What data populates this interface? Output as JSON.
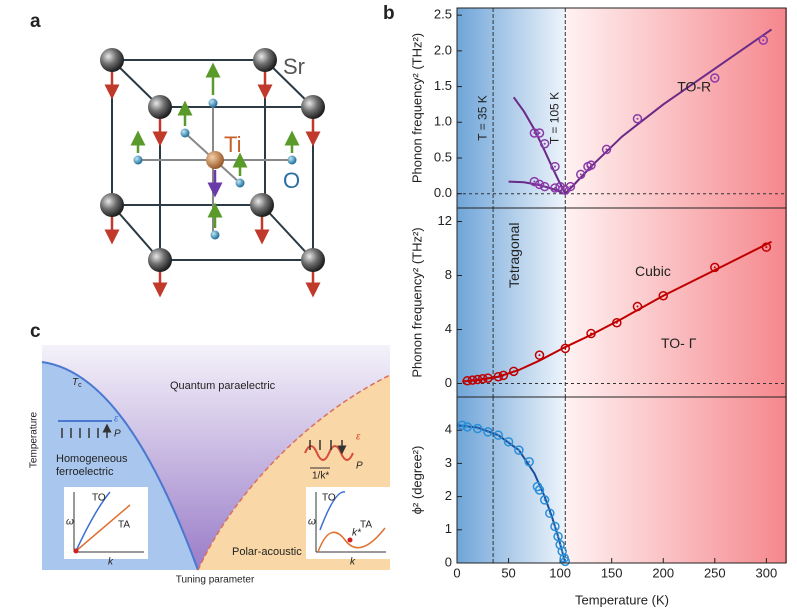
{
  "panel_labels": [
    "a",
    "b",
    "c"
  ],
  "panel_a": {
    "sr": "Sr",
    "ti": "Ti",
    "o": "O"
  },
  "panel_c": {
    "tc": "T",
    "tc_sub": "c",
    "quantum": "Quantum paraelectric",
    "eps1": "ε",
    "p1": "P",
    "ferro1": "Homogeneous",
    "ferro2": "ferroelectric",
    "ylabel": "Temperature",
    "xlabel": "Tuning parameter",
    "polar": "Polar-acoustic",
    "eps2": "ε",
    "p2": "P",
    "invk": "1/k*",
    "to1": "TO",
    "ta1": "TA",
    "w1": "ω",
    "k1": "k",
    "to2": "TO",
    "ta2": "TA",
    "w2": "ω",
    "k2": "k",
    "kstar": "k*"
  },
  "chart_data": [
    {
      "type": "scatter",
      "ylabel": "Phonon frequency² (THz²)",
      "xlim": [
        0,
        320
      ],
      "ylim": [
        -0.2,
        2.6
      ],
      "yticks": [
        0.0,
        0.5,
        1.0,
        1.5,
        2.0,
        2.5
      ],
      "ytick_labels": [
        "0.0",
        "0.5",
        "1.0",
        "1.5",
        "2.0",
        "2.5"
      ],
      "hline": 0,
      "vlines": [
        35,
        105
      ],
      "annotations": [
        "T = 35 K",
        "T = 105 K",
        "TO-R"
      ],
      "series": [
        {
          "mode": "line",
          "color": "#6a2a86",
          "x": [
            55,
            65,
            75,
            85,
            92,
            98,
            103,
            105
          ],
          "values": [
            1.35,
            1.15,
            0.9,
            0.6,
            0.38,
            0.2,
            0.06,
            0
          ]
        },
        {
          "mode": "line",
          "color": "#6a2a86",
          "x": [
            50,
            65,
            80,
            90,
            98,
            103
          ],
          "values": [
            0.17,
            0.16,
            0.12,
            0.08,
            0.04,
            0
          ]
        },
        {
          "mode": "line",
          "color": "#6a2a86",
          "x": [
            105,
            115,
            130,
            160,
            200,
            250,
            305
          ],
          "values": [
            0,
            0.15,
            0.38,
            0.8,
            1.25,
            1.75,
            2.3
          ]
        },
        {
          "mode": "markers",
          "color": "#8a3aa8",
          "x": [
            75,
            80,
            85,
            95,
            100,
            105,
            110,
            120,
            127,
            130,
            145,
            175,
            250,
            297,
            75,
            80,
            85,
            95
          ],
          "values": [
            0.85,
            0.85,
            0.7,
            0.38,
            0.1,
            0.05,
            0.1,
            0.27,
            0.38,
            0.4,
            0.62,
            1.05,
            1.62,
            2.15,
            0.17,
            0.13,
            0.1,
            0.08
          ]
        }
      ]
    },
    {
      "type": "scatter",
      "ylabel": "Phonon frequency² (THz²)",
      "xlim": [
        0,
        320
      ],
      "ylim": [
        -1,
        13
      ],
      "yticks": [
        0,
        4,
        8,
        12
      ],
      "hline": 0,
      "vlines": [
        35,
        105
      ],
      "annotations": [
        "Tetragonal",
        "Cubic",
        "TO- Γ"
      ],
      "series": [
        {
          "mode": "line",
          "color": "#c00000",
          "x": [
            5,
            20,
            40,
            60,
            80,
            105,
            130,
            160,
            200,
            250,
            305
          ],
          "values": [
            0.15,
            0.25,
            0.5,
            1.0,
            1.7,
            2.7,
            3.6,
            4.8,
            6.5,
            8.4,
            10.5
          ]
        },
        {
          "mode": "markers",
          "color": "#c00000",
          "x": [
            10,
            15,
            20,
            25,
            30,
            40,
            45,
            55,
            80,
            105,
            130,
            155,
            175,
            200,
            250,
            300
          ],
          "values": [
            0.2,
            0.25,
            0.3,
            0.35,
            0.4,
            0.5,
            0.6,
            0.9,
            2.1,
            2.6,
            3.7,
            4.5,
            5.7,
            6.5,
            8.6,
            10.1
          ]
        }
      ]
    },
    {
      "type": "scatter",
      "ylabel": "ϕ² (degree²)",
      "xlabel": "Temperature (K)",
      "xlim": [
        0,
        320
      ],
      "ylim": [
        0,
        5
      ],
      "yticks": [
        0,
        1,
        2,
        3,
        4
      ],
      "xticks": [
        0,
        50,
        100,
        150,
        200,
        250,
        300
      ],
      "vlines": [
        35,
        105
      ],
      "annotations": [],
      "series": [
        {
          "mode": "line",
          "color": "#1a4f9c",
          "x": [
            0,
            20,
            40,
            60,
            75,
            85,
            92,
            98,
            102,
            105
          ],
          "values": [
            4.15,
            4.08,
            3.85,
            3.4,
            2.7,
            2.0,
            1.4,
            0.8,
            0.35,
            0
          ]
        },
        {
          "mode": "markers",
          "color": "#2a8fd8",
          "x": [
            5,
            10,
            20,
            30,
            40,
            50,
            60,
            70,
            78,
            80,
            85,
            90,
            95,
            98,
            100,
            102,
            104,
            105
          ],
          "values": [
            4.15,
            4.1,
            4.05,
            3.95,
            3.85,
            3.65,
            3.4,
            3.05,
            2.3,
            2.2,
            1.9,
            1.5,
            1.1,
            0.8,
            0.55,
            0.35,
            0.15,
            0.05
          ]
        }
      ]
    }
  ]
}
